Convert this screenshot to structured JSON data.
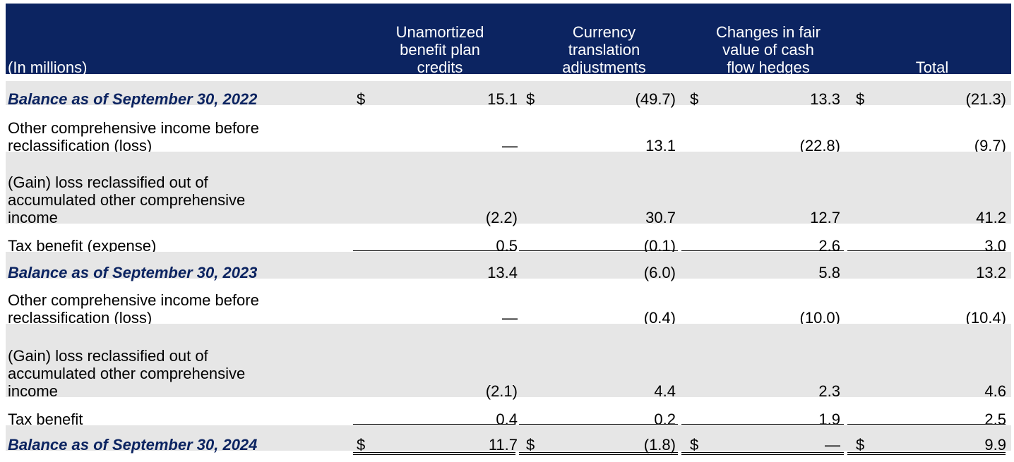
{
  "header": {
    "label_col": "(In millions)",
    "columns": [
      {
        "lines": [
          "Unamortized",
          "benefit plan",
          "credits"
        ]
      },
      {
        "lines": [
          "Currency",
          "translation",
          "adjustments"
        ]
      },
      {
        "lines": [
          "Changes in fair",
          "value of cash",
          "flow hedges"
        ]
      },
      {
        "lines": [
          "Total"
        ]
      }
    ]
  },
  "rows": [
    {
      "type": "balance",
      "lines": [
        "Balance as of September 30, 2022"
      ],
      "values": [
        "15.1",
        "(49.7)",
        "13.3",
        "(21.3)"
      ],
      "dollar": true
    },
    {
      "type": "item",
      "lines": [
        "Other comprehensive income before",
        "reclassification (loss)"
      ],
      "values": [
        "—",
        "13.1",
        "(22.8)",
        "(9.7)"
      ]
    },
    {
      "type": "item",
      "lines": [
        "(Gain) loss reclassified out of",
        "accumulated other comprehensive",
        "income"
      ],
      "values": [
        "(2.2)",
        "30.7",
        "12.7",
        "41.2"
      ]
    },
    {
      "type": "item",
      "lines": [
        "Tax benefit (expense)"
      ],
      "values": [
        "0.5",
        "(0.1)",
        "2.6",
        "3.0"
      ]
    },
    {
      "type": "balance",
      "lines": [
        "Balance as of September 30, 2023"
      ],
      "values": [
        "13.4",
        "(6.0)",
        "5.8",
        "13.2"
      ]
    },
    {
      "type": "item",
      "lines": [
        "Other comprehensive income before",
        "reclassification (loss)"
      ],
      "values": [
        "—",
        "(0.4)",
        "(10.0)",
        "(10.4)"
      ]
    },
    {
      "type": "item",
      "lines": [
        "(Gain) loss reclassified out of",
        "accumulated other comprehensive",
        "income"
      ],
      "values": [
        "(2.1)",
        "4.4",
        "2.3",
        "4.6"
      ]
    },
    {
      "type": "item",
      "lines": [
        "Tax benefit"
      ],
      "values": [
        "0.4",
        "0.2",
        "1.9",
        "2.5"
      ]
    },
    {
      "type": "balance",
      "lines": [
        "Balance as of September 30, 2024"
      ],
      "values": [
        "11.7",
        "(1.8)",
        "—",
        "9.9"
      ],
      "dollar": true
    }
  ],
  "currency_symbol": "$",
  "colors": {
    "header_bg": "#0c2461",
    "header_text": "#ffffff",
    "balance_text": "#0c2461",
    "shade": "#e6e6e6"
  }
}
